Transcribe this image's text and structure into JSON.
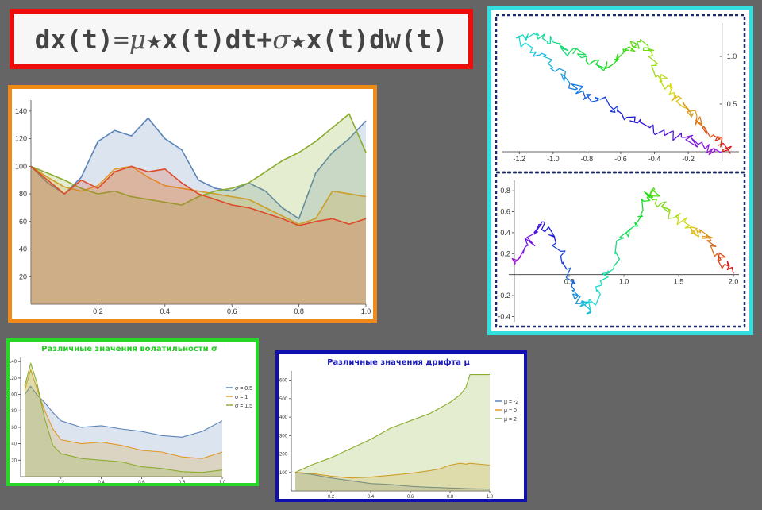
{
  "formula": {
    "p1": "dx(t)",
    "p2": "=",
    "mu": "μ",
    "p3": "★x(t)dt+",
    "sigma": "σ",
    "p4": "★x(t)dw(t)"
  },
  "colors": {
    "blue": "#5b84b8",
    "orange": "#e09a2a",
    "green": "#8aac2e",
    "red": "#dd4a28",
    "frame_main": "#ef8a19",
    "frame_vol": "#28d628",
    "frame_drift": "#1010b0",
    "frame_paths": "#34dede",
    "frame_formula": "#ee0d0d"
  },
  "chart_data": [
    {
      "type": "area",
      "x": [
        0,
        0.05,
        0.1,
        0.15,
        0.2,
        0.25,
        0.3,
        0.35,
        0.4,
        0.45,
        0.5,
        0.55,
        0.6,
        0.65,
        0.7,
        0.75,
        0.8,
        0.85,
        0.9,
        0.95,
        1.0
      ],
      "xticks": [
        "0.2",
        "0.4",
        "0.6",
        "0.8",
        "1.0"
      ],
      "yticks": [
        "20",
        "40",
        "60",
        "80",
        "100",
        "120",
        "140"
      ],
      "xlim": [
        0,
        1
      ],
      "ylim": [
        0,
        148
      ],
      "series": [
        {
          "values": [
            100,
            88,
            80,
            92,
            118,
            126,
            122,
            135,
            120,
            112,
            90,
            84,
            82,
            88,
            82,
            70,
            62,
            95,
            110,
            120,
            133
          ]
        },
        {
          "values": [
            100,
            92,
            85,
            82,
            86,
            98,
            100,
            92,
            86,
            84,
            82,
            80,
            78,
            76,
            70,
            64,
            58,
            62,
            82,
            80,
            78
          ]
        },
        {
          "values": [
            100,
            95,
            90,
            84,
            80,
            82,
            78,
            76,
            74,
            72,
            78,
            82,
            84,
            88,
            96,
            104,
            110,
            118,
            128,
            138,
            110
          ]
        },
        {
          "values": [
            100,
            90,
            80,
            90,
            84,
            96,
            100,
            96,
            98,
            88,
            80,
            76,
            72,
            70,
            66,
            62,
            57,
            60,
            62,
            58,
            62
          ]
        }
      ]
    },
    {
      "type": "line",
      "xticks": [
        "-1.2",
        "-1.0",
        "-0.8",
        "-0.6",
        "-0.4",
        "-0.2"
      ],
      "yticks": [
        "0.5",
        "1.0"
      ],
      "xlim": [
        -1.3,
        0.1
      ],
      "ylim": [
        -0.1,
        1.35
      ],
      "x": [
        0,
        -0.1,
        -0.22,
        -0.35,
        -0.5,
        -0.62,
        -0.72,
        -0.82,
        -0.9,
        -1.0,
        -1.1,
        -1.2,
        -1.1,
        -1.0,
        -0.9,
        -0.8,
        -0.7,
        -0.62,
        -0.55,
        -0.48,
        -0.42,
        -0.38,
        -0.32,
        -0.28,
        -0.22,
        -0.15,
        -0.1,
        -0.05,
        0.0,
        0.05
      ],
      "y": [
        0.0,
        0.03,
        0.15,
        0.22,
        0.3,
        0.42,
        0.55,
        0.62,
        0.72,
        0.88,
        1.05,
        1.2,
        1.25,
        1.15,
        1.05,
        1.0,
        0.85,
        0.95,
        1.1,
        1.15,
        1.05,
        0.8,
        0.7,
        0.55,
        0.48,
        0.35,
        0.25,
        0.18,
        0.08,
        -0.02
      ]
    },
    {
      "type": "line",
      "xticks": [
        "0.5",
        "1.0",
        "1.5",
        "2.0"
      ],
      "yticks": [
        "-0.4",
        "-0.2",
        "0.2",
        "0.4",
        "0.6",
        "0.8"
      ],
      "xlim": [
        -0.05,
        2.05
      ],
      "ylim": [
        -0.45,
        0.9
      ],
      "x": [
        0.0,
        0.08,
        0.18,
        0.28,
        0.38,
        0.48,
        0.55,
        0.62,
        0.7,
        0.8,
        0.9,
        1.0,
        1.1,
        1.18,
        1.25,
        1.3,
        1.4,
        1.5,
        1.6,
        1.7,
        1.78,
        1.85,
        1.92,
        2.0
      ],
      "y": [
        0.1,
        0.2,
        0.4,
        0.5,
        0.3,
        0.05,
        -0.15,
        -0.25,
        -0.35,
        -0.1,
        0.05,
        0.35,
        0.5,
        0.7,
        0.8,
        0.72,
        0.6,
        0.52,
        0.45,
        0.4,
        0.35,
        0.2,
        0.1,
        0.02
      ]
    },
    {
      "type": "area",
      "title": "Различные значения волатильности σ",
      "x": [
        0.02,
        0.05,
        0.08,
        0.12,
        0.16,
        0.2,
        0.3,
        0.4,
        0.5,
        0.6,
        0.7,
        0.8,
        0.9,
        1.0
      ],
      "xticks": [
        "0.2",
        "0.4",
        "0.6",
        "0.8",
        "1.0"
      ],
      "yticks": [
        "20",
        "40",
        "60",
        "80",
        "100",
        "120",
        "140"
      ],
      "xlim": [
        0,
        1
      ],
      "ylim": [
        0,
        145
      ],
      "legend": {
        "position": "right",
        "entries": [
          "σ = 0.5",
          "σ = 1",
          "σ = 1.5"
        ]
      },
      "series": [
        {
          "name": "σ = 0.5",
          "values": [
            100,
            110,
            100,
            90,
            78,
            68,
            60,
            62,
            58,
            55,
            50,
            48,
            55,
            68
          ]
        },
        {
          "name": "σ = 1",
          "values": [
            105,
            130,
            108,
            80,
            58,
            45,
            40,
            42,
            38,
            32,
            30,
            24,
            22,
            30
          ]
        },
        {
          "name": "σ = 1.5",
          "values": [
            110,
            138,
            115,
            70,
            38,
            28,
            22,
            20,
            18,
            12,
            10,
            6,
            5,
            8
          ]
        }
      ]
    },
    {
      "type": "area",
      "title": "Различные значения дрифта μ",
      "x": [
        0.02,
        0.1,
        0.2,
        0.3,
        0.4,
        0.5,
        0.6,
        0.7,
        0.75,
        0.8,
        0.85,
        0.88,
        0.9,
        1.0
      ],
      "xticks": [
        "0.2",
        "0.4",
        "0.6",
        "0.8",
        "1.0"
      ],
      "yticks": [
        "100",
        "200",
        "300",
        "400",
        "500",
        "600"
      ],
      "xlim": [
        0,
        1
      ],
      "ylim": [
        0,
        650
      ],
      "legend": {
        "position": "right",
        "entries": [
          "μ = -2",
          "μ = 0",
          "μ = 2"
        ]
      },
      "series": [
        {
          "name": "μ = -2",
          "values": [
            100,
            90,
            70,
            55,
            40,
            35,
            25,
            20,
            18,
            16,
            14,
            13,
            12,
            10
          ]
        },
        {
          "name": "μ = 0",
          "values": [
            100,
            95,
            80,
            70,
            75,
            85,
            95,
            110,
            120,
            140,
            150,
            145,
            150,
            140
          ]
        },
        {
          "name": "μ = 2",
          "values": [
            100,
            140,
            180,
            230,
            280,
            340,
            380,
            420,
            450,
            480,
            520,
            560,
            630,
            630
          ]
        }
      ]
    }
  ]
}
